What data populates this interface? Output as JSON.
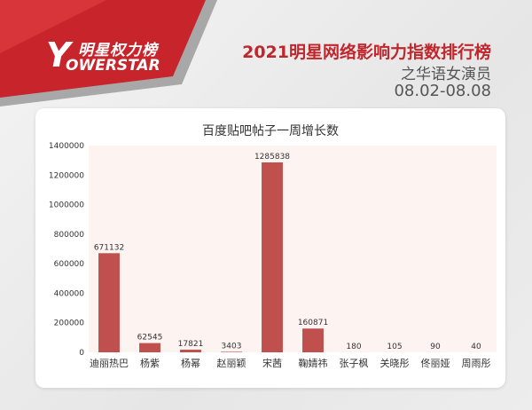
{
  "header": {
    "logo_cn": "明星权力榜",
    "logo_y": "Y",
    "logo_en": "OWERSTAR",
    "title": "2021明星网络影响力指数排行榜",
    "subtitle": "之华语女演员",
    "date_range": "08.02-08.08"
  },
  "colors": {
    "bar": "#c0504d",
    "brand_red": "#c0272d",
    "plot_bg": "#fdf4f2"
  },
  "chart_data": {
    "type": "bar",
    "title": "百度贴吧帖子一周增长数",
    "categories": [
      "迪丽热巴",
      "杨紫",
      "杨幂",
      "赵丽颖",
      "宋茜",
      "鞠婧祎",
      "张子枫",
      "关晓彤",
      "佟丽娅",
      "周雨彤"
    ],
    "values": [
      671132,
      62545,
      17821,
      3403,
      1285838,
      160871,
      180,
      105,
      90,
      40
    ],
    "data_labels": [
      "671132",
      "62545",
      "17821",
      "3403",
      "1285838",
      "160871",
      "180",
      "105",
      "90",
      "40"
    ],
    "ylim": [
      0,
      1400000
    ],
    "yticks": [
      0,
      200000,
      400000,
      600000,
      800000,
      1000000,
      1200000,
      1400000
    ],
    "ytick_labels": [
      "0",
      "200000",
      "400000",
      "600000",
      "800000",
      "1000000",
      "1200000",
      "1400000"
    ],
    "xlabel": "",
    "ylabel": "",
    "grid": false,
    "legend": "none"
  }
}
